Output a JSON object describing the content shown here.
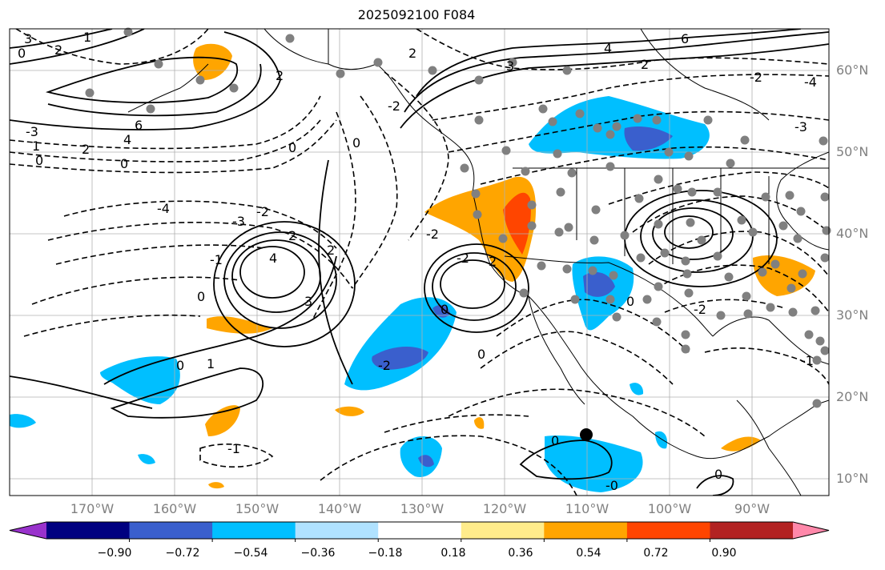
{
  "title": "2025092100 F084",
  "map": {
    "lat_labels": [
      "60°N",
      "50°N",
      "40°N",
      "30°N",
      "20°N",
      "10°N"
    ],
    "lon_labels": [
      "170°W",
      "160°W",
      "150°W",
      "140°W",
      "130°W",
      "120°W",
      "110°W",
      "100°W",
      "90°W"
    ],
    "contour_labels": [
      {
        "text": "-3",
        "id": "c1"
      },
      {
        "text": "1",
        "id": "c2"
      },
      {
        "text": "2",
        "id": "c3"
      },
      {
        "text": "0",
        "id": "c4"
      },
      {
        "text": "6",
        "id": "c5"
      },
      {
        "text": "4",
        "id": "c6"
      },
      {
        "text": "3",
        "id": "c7"
      },
      {
        "text": "1",
        "id": "c8"
      },
      {
        "text": "2",
        "id": "c9"
      },
      {
        "text": "0",
        "id": "c10"
      },
      {
        "text": "0",
        "id": "c11"
      },
      {
        "text": "-4",
        "id": "c12"
      },
      {
        "text": "-3",
        "id": "c13"
      },
      {
        "text": "-2",
        "id": "c14"
      },
      {
        "text": "2",
        "id": "c15"
      },
      {
        "text": "4",
        "id": "c16"
      },
      {
        "text": "3",
        "id": "c17"
      },
      {
        "text": "2",
        "id": "c18"
      },
      {
        "text": "-1",
        "id": "c19"
      },
      {
        "text": "0",
        "id": "c20"
      },
      {
        "text": "1",
        "id": "c21"
      },
      {
        "text": "-2",
        "id": "c22"
      },
      {
        "text": "0",
        "id": "c23"
      },
      {
        "text": "-1",
        "id": "c24"
      },
      {
        "text": "2",
        "id": "c25"
      },
      {
        "text": "-2",
        "id": "c26"
      },
      {
        "text": "2",
        "id": "c27"
      },
      {
        "text": "0",
        "id": "c28"
      },
      {
        "text": "0",
        "id": "c29"
      },
      {
        "text": "3",
        "id": "c30"
      },
      {
        "text": "4",
        "id": "c31"
      },
      {
        "text": "6",
        "id": "c32"
      },
      {
        "text": "2",
        "id": "c33"
      },
      {
        "text": "-2",
        "id": "c34"
      },
      {
        "text": "-3",
        "id": "c35"
      },
      {
        "text": "-4",
        "id": "c36"
      },
      {
        "text": "-2",
        "id": "c37"
      },
      {
        "text": "2",
        "id": "c38"
      },
      {
        "text": "-2",
        "id": "c39"
      },
      {
        "text": "0",
        "id": "c40"
      },
      {
        "text": "0",
        "id": "c41"
      },
      {
        "text": "0",
        "id": "c42"
      },
      {
        "text": "-0",
        "id": "c43"
      },
      {
        "text": "0",
        "id": "c44"
      },
      {
        "text": "-1",
        "id": "c45"
      },
      {
        "text": "-2",
        "id": "c46"
      },
      {
        "text": "0",
        "id": "c47"
      }
    ],
    "colors": {
      "dark_orange": "#e8410a",
      "orange": "#ffa500",
      "light_blue": "#00bfff",
      "mid_blue": "#3a5fcd",
      "coast": "#000000",
      "grid": "#b0b0b0",
      "station": "#808080"
    }
  },
  "colorbar": {
    "ticks": [
      "−0.90",
      "−0.72",
      "−0.54",
      "−0.36",
      "−0.18",
      "0.18",
      "0.36",
      "0.54",
      "0.72",
      "0.90"
    ],
    "colors": [
      "#9932cc",
      "#000080",
      "#3a5fcd",
      "#00bfff",
      "#b0e2ff",
      "#ffffff",
      "#ffec8b",
      "#ffa500",
      "#ff4500",
      "#b22222",
      "#ff88aa"
    ],
    "extend_low_color": "#9932cc",
    "extend_high_color": "#ff88aa"
  }
}
